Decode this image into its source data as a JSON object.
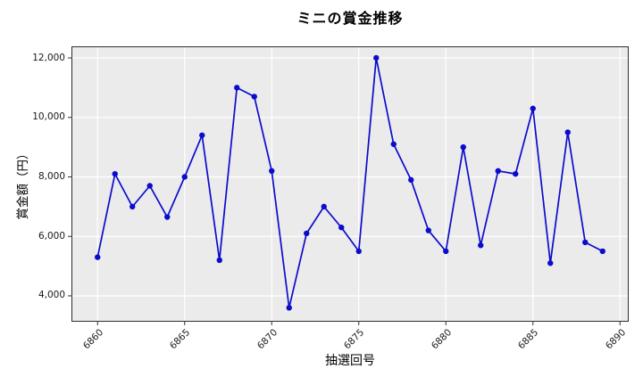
{
  "chart_data": {
    "type": "line",
    "title": "ミニの賞金推移",
    "xlabel": "抽選回号",
    "ylabel": "賞金額（円）",
    "x": [
      6860,
      6861,
      6862,
      6863,
      6864,
      6865,
      6866,
      6867,
      6868,
      6869,
      6870,
      6871,
      6872,
      6873,
      6874,
      6875,
      6876,
      6877,
      6878,
      6879,
      6880,
      6881,
      6882,
      6883,
      6884,
      6885,
      6886,
      6887,
      6888,
      6889
    ],
    "values": [
      5300,
      8100,
      7000,
      7700,
      6650,
      8000,
      9400,
      5200,
      11000,
      10700,
      8200,
      3600,
      6100,
      7000,
      6300,
      5500,
      12000,
      9100,
      7900,
      6200,
      5500,
      9000,
      5700,
      8200,
      8100,
      10300,
      5100,
      9500,
      5800,
      5500
    ],
    "x_ticks": [
      6860,
      6865,
      6870,
      6875,
      6880,
      6885,
      6890
    ],
    "x_tick_labels": [
      "6860",
      "6865",
      "6870",
      "6875",
      "6880",
      "6885",
      "6890"
    ],
    "y_ticks": [
      4000,
      6000,
      8000,
      10000,
      12000
    ],
    "y_tick_labels": [
      "4,000",
      "6,000",
      "8,000",
      "10,000",
      "12,000"
    ],
    "xlim": [
      6858.5,
      6890.5
    ],
    "ylim": [
      3130,
      12390
    ],
    "grid": true,
    "legend": "none",
    "line_color": "#0b0bcd",
    "marker_color": "#0b0bcd",
    "plot_bg": "#ebebeb",
    "grid_color": "#ffffff",
    "spine_color": "#2e2e2e",
    "tick_color": "#333333"
  }
}
